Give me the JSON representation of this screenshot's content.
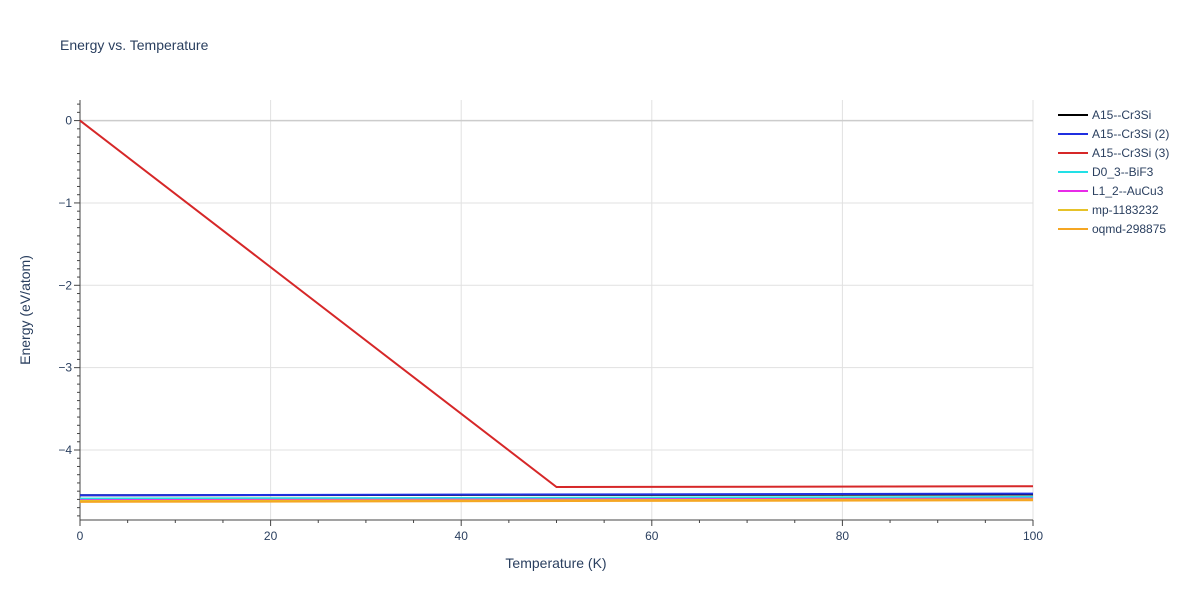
{
  "chart_data": {
    "type": "line",
    "title": "Energy vs. Temperature",
    "xlabel": "Temperature (K)",
    "ylabel": "Energy (eV/atom)",
    "xlim": [
      0,
      100
    ],
    "ylim": [
      -4.85,
      0.25
    ],
    "x_ticks": [
      0,
      20,
      40,
      60,
      80,
      100
    ],
    "x_tick_labels": [
      "0",
      "20",
      "40",
      "60",
      "80",
      "100"
    ],
    "y_ticks": [
      0,
      -1,
      -2,
      -3,
      -4
    ],
    "y_tick_labels": [
      "0",
      "−1",
      "−2",
      "−3",
      "−4"
    ],
    "grid": true,
    "legend_position": "right",
    "series": [
      {
        "name": "A15--Cr3Si",
        "color": "#000000",
        "x": [
          0,
          100
        ],
        "y": [
          -4.55,
          -4.54
        ]
      },
      {
        "name": "A15--Cr3Si (2)",
        "color": "#1f2fe0",
        "x": [
          0,
          100
        ],
        "y": [
          -4.55,
          -4.53
        ]
      },
      {
        "name": "A15--Cr3Si (3)",
        "color": "#d62728",
        "x": [
          0,
          50,
          100
        ],
        "y": [
          0,
          -4.45,
          -4.44
        ]
      },
      {
        "name": "D0_3--BiF3",
        "color": "#22e0e6",
        "x": [
          0,
          100
        ],
        "y": [
          -4.59,
          -4.57
        ]
      },
      {
        "name": "L1_2--AuCu3",
        "color": "#e82be8",
        "x": [
          0,
          100
        ],
        "y": [
          -4.61,
          -4.59
        ]
      },
      {
        "name": "mp-1183232",
        "color": "#e6c229",
        "x": [
          0,
          100
        ],
        "y": [
          -4.62,
          -4.6
        ]
      },
      {
        "name": "oqmd-298875",
        "color": "#f5a623",
        "x": [
          0,
          100
        ],
        "y": [
          -4.63,
          -4.61
        ]
      }
    ]
  }
}
